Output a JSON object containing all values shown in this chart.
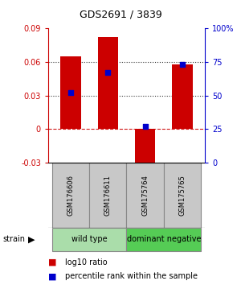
{
  "title": "GDS2691 / 3839",
  "samples": [
    "GSM176606",
    "GSM176611",
    "GSM175764",
    "GSM175765"
  ],
  "log10_ratio": [
    0.065,
    0.082,
    -0.033,
    0.058
  ],
  "percentile_rank": [
    0.52,
    0.67,
    0.27,
    0.73
  ],
  "groups": [
    {
      "label": "wild type",
      "samples": [
        0,
        1
      ],
      "color": "#aaddaa"
    },
    {
      "label": "dominant negative",
      "samples": [
        2,
        3
      ],
      "color": "#55cc55"
    }
  ],
  "ylim_left": [
    -0.03,
    0.09
  ],
  "ylim_right": [
    0.0,
    1.0
  ],
  "yticks_left": [
    -0.03,
    0,
    0.03,
    0.06,
    0.09
  ],
  "yticks_right": [
    0.0,
    0.25,
    0.5,
    0.75,
    1.0
  ],
  "ytick_labels_right": [
    "0",
    "25",
    "50",
    "75",
    "100%"
  ],
  "ytick_labels_left": [
    "-0.03",
    "0",
    "0.03",
    "0.06",
    "0.09"
  ],
  "hlines_dotted": [
    0.03,
    0.06
  ],
  "bar_color": "#CC0000",
  "dot_color": "#0000CC",
  "left_axis_color": "#CC0000",
  "right_axis_color": "#0000CC",
  "bar_width": 0.55,
  "background_color": "#ffffff",
  "sample_box_color": "#c8c8c8",
  "sample_box_edge": "#888888"
}
